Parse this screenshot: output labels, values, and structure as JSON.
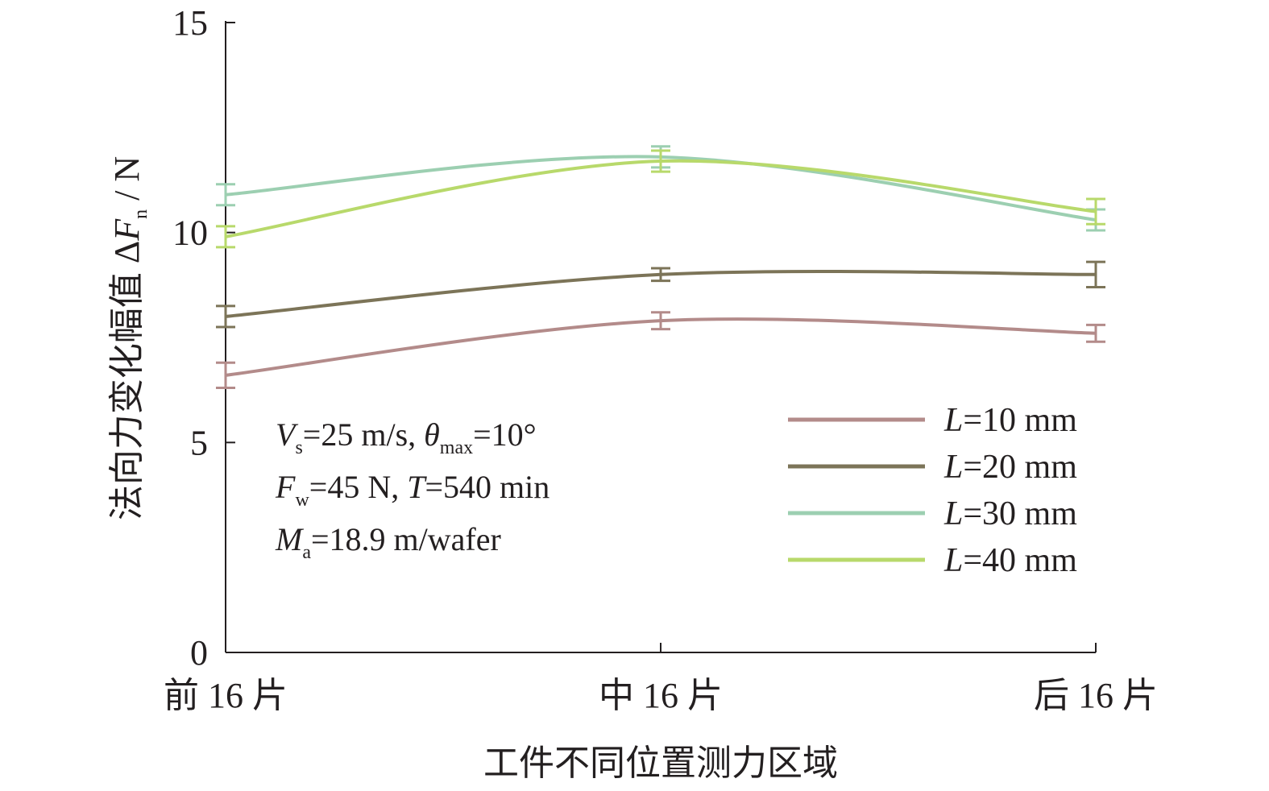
{
  "chart_data": {
    "type": "line",
    "title": "",
    "xlabel": "工件不同位置测力区域",
    "ylabel": {
      "prefix": "法向力变化幅值 Δ",
      "symbol": "F",
      "subscript": "n",
      "unit": " / N"
    },
    "categories": [
      "前 16 片",
      "中 16 片",
      "后 16 片"
    ],
    "ylim": [
      0,
      15
    ],
    "yticks": [
      "0",
      "5",
      "10",
      "15"
    ],
    "grid": false,
    "legend_position": "lower-right",
    "series": [
      {
        "name": "L=10 mm",
        "label_symbol": "L",
        "label_rest": "=10 mm",
        "color": "#b38b8a",
        "values": [
          6.6,
          7.9,
          7.6
        ],
        "errors": [
          0.3,
          0.2,
          0.2
        ]
      },
      {
        "name": "L=20 mm",
        "label_symbol": "L",
        "label_rest": "=20 mm",
        "color": "#7c7458",
        "values": [
          8.0,
          9.0,
          9.0
        ],
        "errors": [
          0.25,
          0.15,
          0.3
        ]
      },
      {
        "name": "L=30 mm",
        "label_symbol": "L",
        "label_rest": "=30 mm",
        "color": "#9ccfb1",
        "values": [
          10.9,
          11.8,
          10.3
        ],
        "errors": [
          0.25,
          0.25,
          0.25
        ]
      },
      {
        "name": "L=40 mm",
        "label_symbol": "L",
        "label_rest": "=40 mm",
        "color": "#b8d96b",
        "values": [
          9.9,
          11.7,
          10.5
        ],
        "errors": [
          0.25,
          0.25,
          0.3
        ]
      }
    ],
    "annotation_lines": [
      {
        "parts": [
          {
            "text": "V",
            "style": "ital"
          },
          {
            "text": "s",
            "style": "sub"
          },
          {
            "text": "=25 m/s, ",
            "style": "normal"
          },
          {
            "text": "θ",
            "style": "ital"
          },
          {
            "text": "max",
            "style": "sub"
          },
          {
            "text": "=10°",
            "style": "normal"
          }
        ]
      },
      {
        "parts": [
          {
            "text": "F",
            "style": "ital"
          },
          {
            "text": "w",
            "style": "sub"
          },
          {
            "text": "=45 N, ",
            "style": "normal"
          },
          {
            "text": "T",
            "style": "ital"
          },
          {
            "text": "=540 min",
            "style": "normal"
          }
        ]
      },
      {
        "parts": [
          {
            "text": "M",
            "style": "ital"
          },
          {
            "text": "a",
            "style": "sub"
          },
          {
            "text": "=18.9 m/wafer",
            "style": "normal"
          }
        ]
      }
    ]
  }
}
